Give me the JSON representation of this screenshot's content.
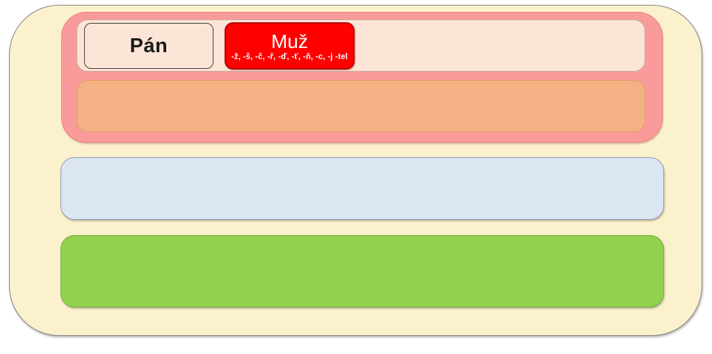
{
  "boxes": {
    "pan_label": "Pán",
    "muz_label": "Muž",
    "muz_suffixes": "-ž, -š, -č, -ř, -ď, -ť, -ň, -c, -j -tel"
  },
  "colors": {
    "outer_fill": "#FCF1CD",
    "outer_border": "#808080",
    "pink_fill": "#F99B9B",
    "pink_border": "#F28080",
    "peach_fill": "#FCE4D6",
    "peach_border": "#C7AB9C",
    "pan_fill": "#FCE4D6",
    "pan_border": "#3B3B3B",
    "pan_text": "#1A1A1A",
    "muz_fill": "#FE0000",
    "muz_border": "#B30000",
    "muz_text": "#FFFFFF",
    "orange_fill": "#F4B183",
    "orange_border": "#E29A60",
    "blue_fill": "#DCE6F2",
    "blue_border": "#8D9BB0",
    "green_fill": "#92D050",
    "green_border": "#76AC3F"
  }
}
